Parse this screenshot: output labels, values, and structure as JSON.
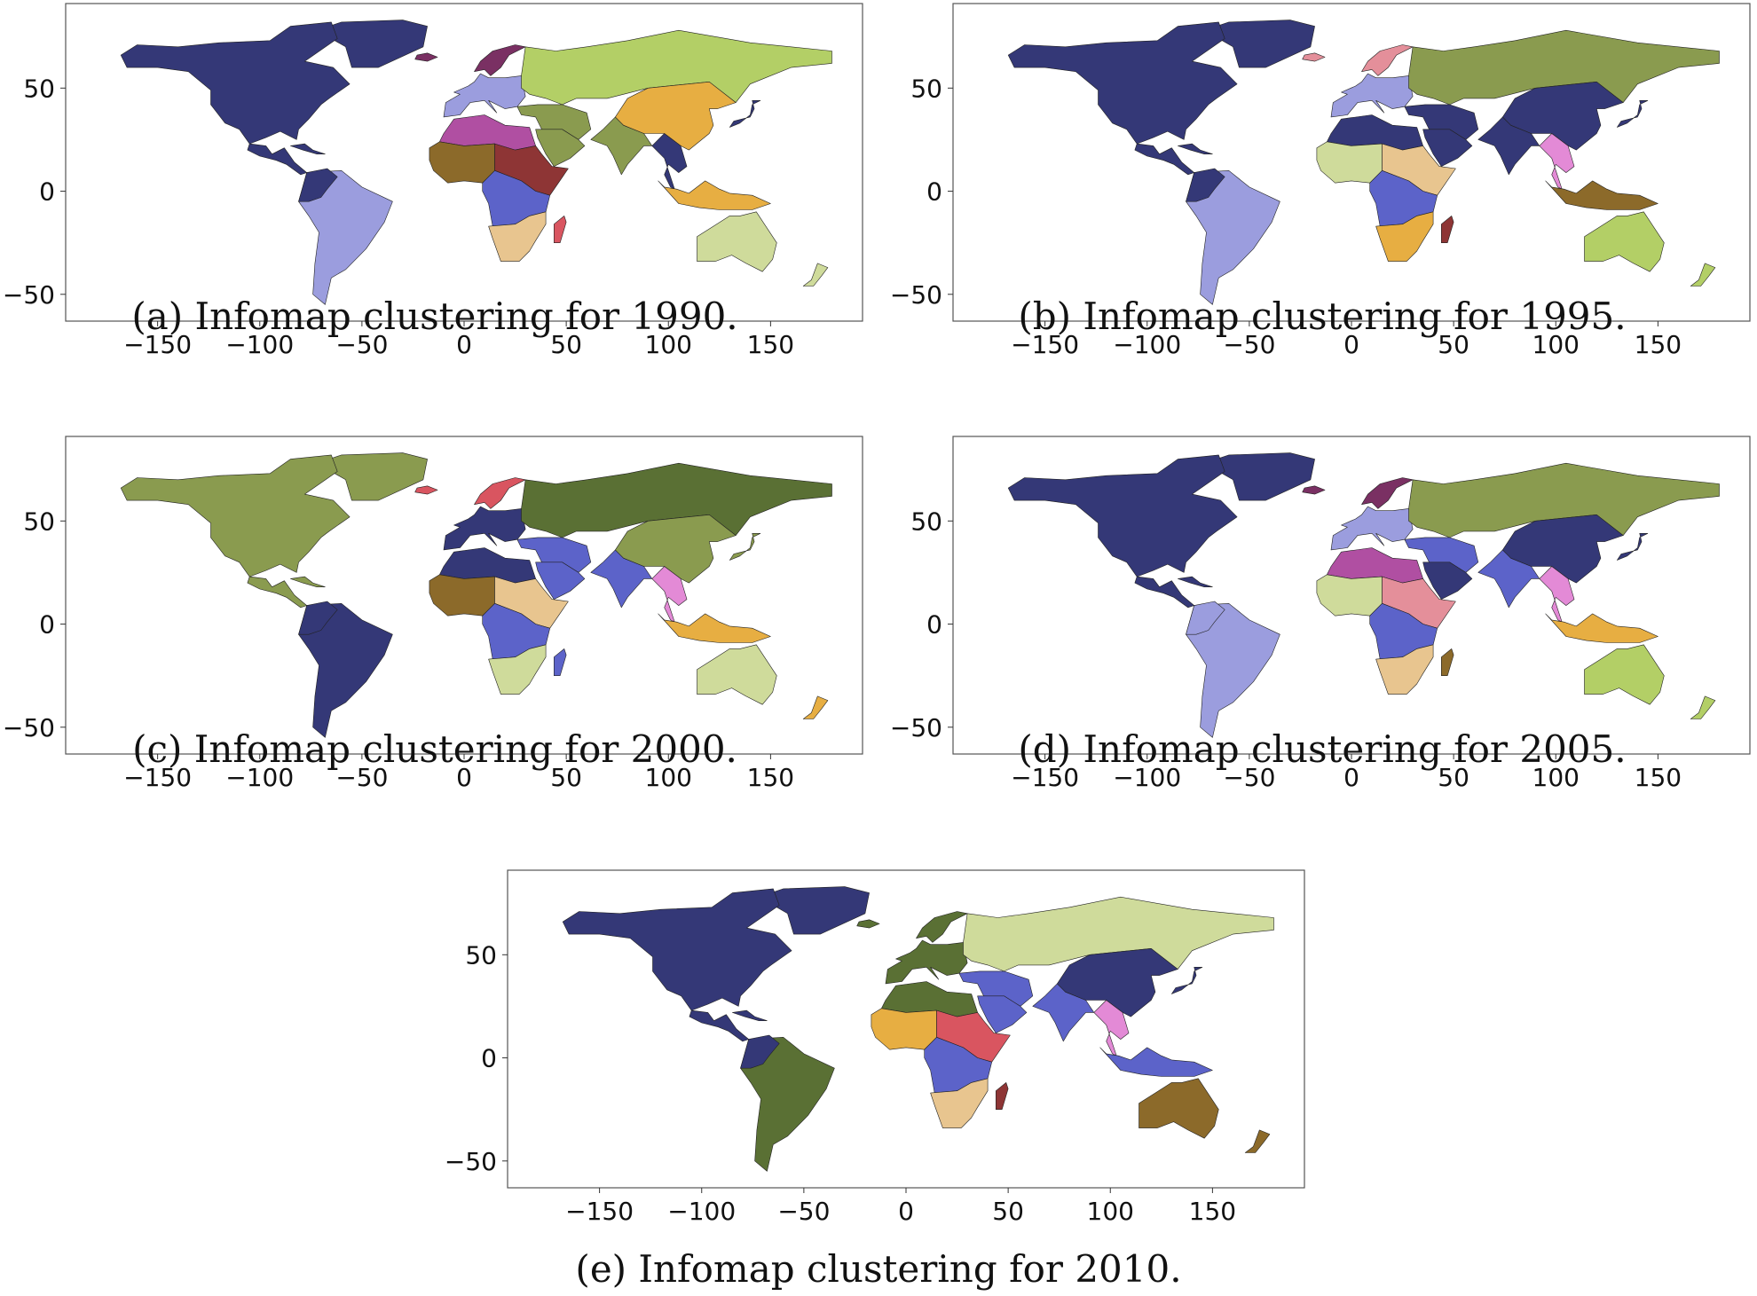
{
  "axes": {
    "x_ticks": [
      -150,
      -100,
      -50,
      0,
      50,
      100,
      150
    ],
    "y_ticks": [
      50,
      0,
      -50
    ],
    "x_tick_labels": [
      "−150",
      "−100",
      "−50",
      "0",
      "50",
      "100",
      "150"
    ],
    "y_tick_labels": [
      "50",
      "0",
      "−50"
    ],
    "xlim": [
      -195,
      195
    ],
    "ylim": [
      -63,
      91
    ]
  },
  "colors": {
    "navy": "#343877",
    "lavender": "#9b9dde",
    "blue": "#5c63c9",
    "olive": "#8a9b4f",
    "darkolive": "#5a7034",
    "lightgreen": "#b3cf66",
    "palegreen": "#cfdb9b",
    "orange": "#e7ae42",
    "tan": "#e8c58f",
    "brown": "#8c6a2a",
    "darkred": "#8e3535",
    "red": "#d95560",
    "pink": "#e48f9a",
    "magenta": "#b04fa2",
    "violet": "#e38ad6",
    "plum": "#7a3063"
  },
  "panels": [
    {
      "caption": "(a) Infomap clustering for 1990.",
      "regions": {
        "north_america": "navy",
        "central_america": "navy",
        "caribbean": "navy",
        "south_america": "lavender",
        "south_america_nw": "navy",
        "europe_west": "lavender",
        "scandinavia": "plum",
        "russia": "lightgreen",
        "north_africa": "magenta",
        "west_africa": "brown",
        "east_africa": "darkred",
        "central_africa": "blue",
        "southern_africa": "tan",
        "madagascar": "red",
        "middle_east": "olive",
        "arabia": "olive",
        "india": "olive",
        "china": "orange",
        "se_asia": "navy",
        "indonesia": "orange",
        "japan": "navy",
        "australia": "palegreen",
        "new_zealand": "palegreen",
        "greenland": "navy",
        "iceland": "plum"
      }
    },
    {
      "caption": "(b) Infomap clustering for 1995.",
      "regions": {
        "north_america": "navy",
        "central_america": "navy",
        "caribbean": "navy",
        "south_america": "lavender",
        "south_america_nw": "navy",
        "europe_west": "lavender",
        "scandinavia": "pink",
        "russia": "olive",
        "north_africa": "navy",
        "west_africa": "palegreen",
        "east_africa": "tan",
        "central_africa": "blue",
        "southern_africa": "orange",
        "madagascar": "darkred",
        "middle_east": "navy",
        "arabia": "navy",
        "india": "navy",
        "china": "navy",
        "se_asia": "violet",
        "indonesia": "brown",
        "japan": "navy",
        "australia": "lightgreen",
        "new_zealand": "lightgreen",
        "greenland": "navy",
        "iceland": "pink"
      }
    },
    {
      "caption": "(c) Infomap clustering for 2000.",
      "regions": {
        "north_america": "olive",
        "central_america": "olive",
        "caribbean": "olive",
        "south_america": "navy",
        "south_america_nw": "navy",
        "europe_west": "navy",
        "scandinavia": "red",
        "russia": "darkolive",
        "north_africa": "navy",
        "west_africa": "brown",
        "east_africa": "tan",
        "central_africa": "blue",
        "southern_africa": "palegreen",
        "madagascar": "blue",
        "middle_east": "blue",
        "arabia": "blue",
        "india": "blue",
        "china": "olive",
        "se_asia": "violet",
        "indonesia": "orange",
        "japan": "olive",
        "australia": "palegreen",
        "new_zealand": "orange",
        "greenland": "olive",
        "iceland": "red"
      }
    },
    {
      "caption": "(d) Infomap clustering for 2005.",
      "regions": {
        "north_america": "navy",
        "central_america": "navy",
        "caribbean": "navy",
        "south_america": "lavender",
        "south_america_nw": "lavender",
        "europe_west": "lavender",
        "scandinavia": "plum",
        "russia": "olive",
        "north_africa": "magenta",
        "west_africa": "palegreen",
        "east_africa": "pink",
        "central_africa": "blue",
        "southern_africa": "tan",
        "madagascar": "brown",
        "middle_east": "blue",
        "arabia": "navy",
        "india": "blue",
        "china": "navy",
        "se_asia": "violet",
        "indonesia": "orange",
        "japan": "navy",
        "australia": "lightgreen",
        "new_zealand": "lightgreen",
        "greenland": "navy",
        "iceland": "plum"
      }
    },
    {
      "caption": "(e) Infomap clustering for 2010.",
      "regions": {
        "north_america": "navy",
        "central_america": "navy",
        "caribbean": "navy",
        "south_america": "darkolive",
        "south_america_nw": "navy",
        "europe_west": "darkolive",
        "scandinavia": "darkolive",
        "russia": "palegreen",
        "north_africa": "darkolive",
        "west_africa": "orange",
        "east_africa": "red",
        "central_africa": "blue",
        "southern_africa": "tan",
        "madagascar": "darkred",
        "middle_east": "blue",
        "arabia": "blue",
        "india": "blue",
        "china": "navy",
        "se_asia": "violet",
        "indonesia": "blue",
        "japan": "navy",
        "australia": "brown",
        "new_zealand": "brown",
        "greenland": "navy",
        "iceland": "darkolive"
      }
    }
  ]
}
